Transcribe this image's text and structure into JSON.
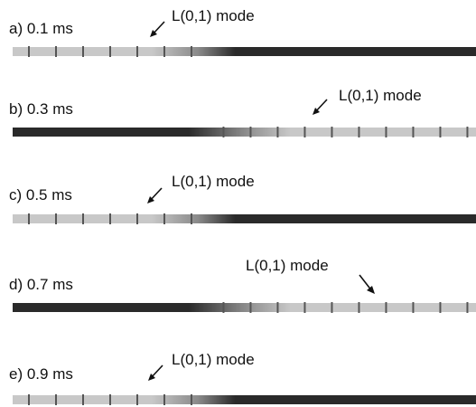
{
  "mode_label": "L(0,1) mode",
  "panels": [
    {
      "label": "a) 0.1 ms",
      "wave_front": "left",
      "arrow_dir": "down-left"
    },
    {
      "label": "b) 0.3 ms",
      "wave_front": "right",
      "arrow_dir": "down-left"
    },
    {
      "label": "c) 0.5 ms",
      "wave_front": "left",
      "arrow_dir": "down-left"
    },
    {
      "label": "d) 0.7 ms",
      "wave_front": "right",
      "arrow_dir": "down-right"
    },
    {
      "label": "e) 0.9 ms",
      "wave_front": "left",
      "arrow_dir": "down-left"
    }
  ],
  "colors": {
    "bar_dark": "#2a2a2a",
    "bar_light": "#c8c8c8",
    "segment_line": "#555555",
    "text": "#111111"
  }
}
